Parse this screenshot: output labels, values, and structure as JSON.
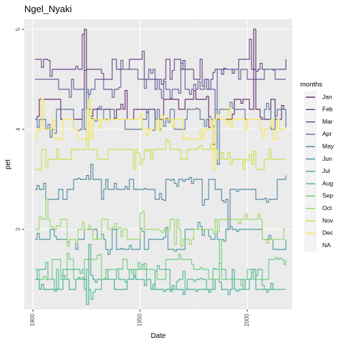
{
  "chart_data": {
    "type": "line",
    "title": "Ngel_Nyaki",
    "xlabel": "Date",
    "ylabel": "pet",
    "xlim": [
      1896,
      2021
    ],
    "ylim": [
      2.2,
      5.1
    ],
    "x_ticks": [
      1900,
      1950,
      2000
    ],
    "y_ticks": [
      3,
      4,
      5
    ],
    "grid": true,
    "legend": {
      "title": "months",
      "position": "right",
      "entries": [
        "Jan",
        "Feb",
        "Mar",
        "Apr",
        "May",
        "Jun",
        "Jul",
        "Aug",
        "Sep",
        "Oct",
        "Nov",
        "Dec",
        "NA"
      ]
    },
    "x_start": 1901,
    "x_end": 2018,
    "series": [
      {
        "name": "Jan",
        "color": "#440154",
        "levels": [
          4.2,
          4.1,
          4.3
        ],
        "wiggle": 0.1,
        "spikes": [
          [
            1924,
            5.0
          ],
          [
            1984,
            3.85
          ],
          [
            2003,
            5.0
          ]
        ]
      },
      {
        "name": "Feb",
        "color": "#482173",
        "levels": [
          4.6,
          4.5,
          4.7
        ],
        "wiggle": 0.1,
        "spikes": [
          [
            1923,
            4.95
          ],
          [
            2001,
            4.9
          ]
        ]
      },
      {
        "name": "Mar",
        "color": "#433E85",
        "levels": [
          4.5,
          4.4,
          4.6
        ],
        "wiggle": 0.1,
        "spikes": [
          [
            1924,
            4.0
          ],
          [
            1985,
            3.8
          ]
        ]
      },
      {
        "name": "Apr",
        "color": "#38598C",
        "levels": [
          4.1,
          4.0,
          4.2
        ],
        "wiggle": 0.08,
        "spikes": [
          [
            1925,
            4.4
          ],
          [
            1986,
            3.65
          ]
        ]
      },
      {
        "name": "May",
        "color": "#2D708E",
        "levels": [
          3.4,
          3.3,
          3.5
        ],
        "wiggle": 0.07,
        "spikes": [
          [
            1927,
            3.65
          ],
          [
            1991,
            3.0
          ]
        ]
      },
      {
        "name": "Jun",
        "color": "#25858E",
        "levels": [
          2.9,
          2.8,
          3.0
        ],
        "wiggle": 0.07,
        "spikes": [
          [
            1985,
            3.1
          ]
        ]
      },
      {
        "name": "Jul",
        "color": "#1E9B8A",
        "levels": [
          2.5,
          2.4,
          2.6
        ],
        "wiggle": 0.07,
        "spikes": [
          [
            1925,
            2.25
          ],
          [
            1926,
            2.85
          ]
        ]
      },
      {
        "name": "Aug",
        "color": "#2BB07F",
        "levels": [
          2.5,
          2.4,
          2.6
        ],
        "wiggle": 0.08,
        "spikes": [
          [
            1927,
            2.3
          ]
        ]
      },
      {
        "name": "Sep",
        "color": "#51C56A",
        "levels": [
          2.6,
          2.5,
          2.7
        ],
        "wiggle": 0.07,
        "spikes": [
          [
            1987,
            2.9
          ]
        ]
      },
      {
        "name": "Oct",
        "color": "#85D54A",
        "levels": [
          3.0,
          2.9,
          3.1
        ],
        "wiggle": 0.08,
        "spikes": [
          [
            1906,
            3.3
          ],
          [
            1966,
            2.85
          ]
        ]
      },
      {
        "name": "Nov",
        "color": "#C2DF23",
        "levels": [
          3.7,
          3.6,
          3.8
        ],
        "wiggle": 0.1,
        "spikes": [
          [
            1925,
            4.2
          ],
          [
            1962,
            3.9
          ]
        ]
      },
      {
        "name": "Dec",
        "color": "#FDE725",
        "levels": [
          3.9,
          4.0,
          4.1
        ],
        "wiggle": 0.12,
        "spikes": [
          [
            1904,
            4.3
          ],
          [
            1926,
            4.3
          ],
          [
            1984,
            3.6
          ]
        ]
      }
    ]
  },
  "colors": {
    "panel": "#ebebeb",
    "grid_major": "#ffffff",
    "grid_minor": "#f4f4f4",
    "na_key": "#f2f2f2"
  }
}
